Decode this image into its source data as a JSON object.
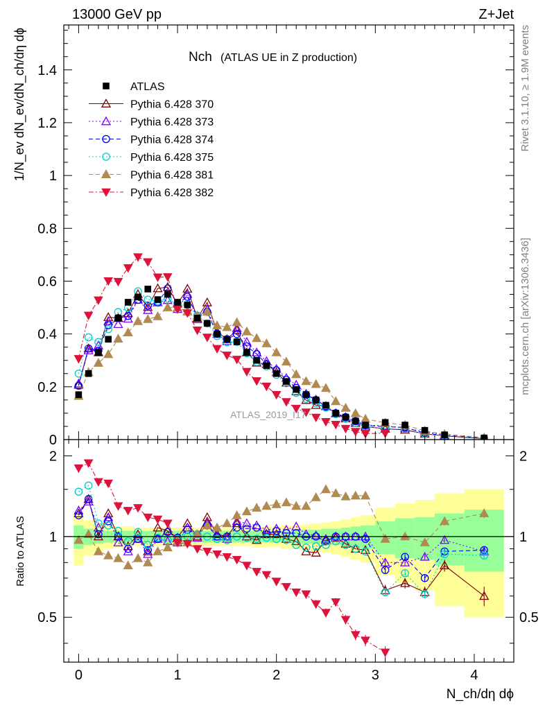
{
  "header": {
    "left": "13000 GeV pp",
    "right": "Z+Jet"
  },
  "side_labels": {
    "rivet": "Rivet 3.1.10, ≥ 1.9M events",
    "mcplots": "mcplots.cern.ch [arXiv:1306.3436]"
  },
  "chart_data": {
    "type": "scatter",
    "title": "Nch",
    "subtitle": "(ATLAS UE in Z production)",
    "watermark": "ATLAS_2019_I17",
    "main_ylabel": "1/N_ev dN_ev/dN_ch/dη dϕ",
    "ratio_ylabel": "Ratio to ATLAS",
    "xlabel": "N_ch/dη dϕ",
    "xlim": [
      -0.15,
      4.4
    ],
    "ylim_main": [
      0,
      1.57
    ],
    "ylim_ratio": [
      0.34,
      2.3
    ],
    "ratio_log_scale": true,
    "x_ticks": [
      0,
      1,
      2,
      3,
      4
    ],
    "main_y_ticks": [
      "0",
      "0.2",
      "0.4",
      "0.6",
      "0.8",
      "1",
      "1.2",
      "1.4"
    ],
    "ratio_y_ticks": [
      "0.5",
      "1",
      "2"
    ],
    "legend_placement": "top-left",
    "x": [
      0.0,
      0.1,
      0.2,
      0.3,
      0.4,
      0.5,
      0.6,
      0.7,
      0.8,
      0.9,
      1.0,
      1.1,
      1.2,
      1.3,
      1.4,
      1.5,
      1.6,
      1.7,
      1.8,
      1.9,
      2.0,
      2.1,
      2.2,
      2.3,
      2.4,
      2.5,
      2.6,
      2.7,
      2.8,
      2.9,
      3.1,
      3.3,
      3.5,
      3.7,
      4.1
    ],
    "data": {
      "name": "ATLAS",
      "color": "#000000",
      "values": [
        0.17,
        0.25,
        0.33,
        0.38,
        0.46,
        0.52,
        0.54,
        0.57,
        0.53,
        0.55,
        0.52,
        0.51,
        0.46,
        0.44,
        0.4,
        0.38,
        0.37,
        0.33,
        0.3,
        0.28,
        0.25,
        0.22,
        0.19,
        0.17,
        0.15,
        0.13,
        0.1,
        0.085,
        0.07,
        0.055,
        0.065,
        0.055,
        0.035,
        0.018,
        0.006
      ],
      "band_inner": [
        0.1,
        0.07,
        0.06,
        0.05,
        0.05,
        0.05,
        0.05,
        0.05,
        0.05,
        0.05,
        0.05,
        0.05,
        0.05,
        0.05,
        0.05,
        0.05,
        0.05,
        0.05,
        0.05,
        0.05,
        0.05,
        0.05,
        0.06,
        0.06,
        0.06,
        0.07,
        0.07,
        0.08,
        0.09,
        0.1,
        0.14,
        0.17,
        0.18,
        0.22,
        0.26
      ],
      "band_outer": [
        0.22,
        0.15,
        0.12,
        0.1,
        0.09,
        0.09,
        0.08,
        0.08,
        0.08,
        0.08,
        0.08,
        0.08,
        0.08,
        0.08,
        0.08,
        0.08,
        0.08,
        0.08,
        0.09,
        0.09,
        0.09,
        0.1,
        0.1,
        0.11,
        0.12,
        0.13,
        0.14,
        0.16,
        0.18,
        0.2,
        0.28,
        0.33,
        0.37,
        0.45,
        0.5
      ]
    },
    "series": [
      {
        "name": "Pythia 6.428 370",
        "color": "#7f0000",
        "marker": "triangle-open",
        "line": "solid",
        "ratio": [
          1.22,
          1.38,
          1.0,
          1.22,
          1.0,
          0.92,
          1.02,
          0.88,
          1.08,
          1.05,
          0.99,
          1.12,
          1.0,
          1.18,
          1.02,
          1.0,
          1.12,
          1.0,
          0.97,
          1.02,
          1.02,
          0.98,
          0.96,
          0.88,
          0.87,
          0.97,
          0.99,
          0.94,
          0.9,
          0.89,
          0.63,
          0.67,
          0.62,
          0.78,
          0.6
        ],
        "ratio_err": [
          0,
          0,
          0,
          0,
          0,
          0,
          0,
          0,
          0,
          0,
          0,
          0,
          0,
          0,
          0,
          0,
          0,
          0,
          0,
          0,
          0,
          0,
          0,
          0,
          0,
          0,
          0,
          0,
          0,
          0.02,
          0.03,
          0.03,
          0.03,
          0.04,
          0.05
        ]
      },
      {
        "name": "Pythia 6.428 373",
        "color": "#7f00ff",
        "marker": "triangle-open",
        "line": "dotted",
        "ratio": [
          1.25,
          1.35,
          1.08,
          1.18,
          0.95,
          0.88,
          0.98,
          0.86,
          0.98,
          0.96,
          0.95,
          1.08,
          0.99,
          1.12,
          1.0,
          0.98,
          1.14,
          1.12,
          1.1,
          1.06,
          1.07,
          1.06,
          1.09,
          1.02,
          1.01,
          0.98,
          1.0,
          1.0,
          1.0,
          1.0,
          0.8,
          0.8,
          0.84,
          0.97,
          0.88
        ],
        "ratio_err": [
          0,
          0,
          0,
          0,
          0,
          0,
          0,
          0,
          0,
          0,
          0,
          0,
          0,
          0,
          0,
          0,
          0,
          0,
          0,
          0,
          0,
          0,
          0,
          0,
          0,
          0,
          0,
          0,
          0,
          0.02,
          0.02,
          0.02,
          0.02,
          0.02,
          0.02
        ]
      },
      {
        "name": "Pythia 6.428 374",
        "color": "#0000ff",
        "marker": "circle-open",
        "line": "dashed",
        "ratio": [
          1.2,
          1.38,
          1.02,
          1.14,
          1.0,
          0.9,
          0.98,
          0.89,
          0.98,
          1.04,
          0.99,
          1.06,
          1.02,
          1.1,
          1.0,
          1.0,
          1.08,
          1.07,
          1.08,
          1.02,
          1.05,
          1.03,
          1.03,
          1.0,
          1.0,
          0.96,
          1.0,
          1.0,
          1.0,
          0.98,
          0.75,
          0.84,
          0.7,
          0.88,
          0.89
        ],
        "ratio_err": [
          0,
          0,
          0,
          0,
          0,
          0,
          0,
          0,
          0,
          0,
          0,
          0,
          0,
          0,
          0,
          0,
          0,
          0,
          0,
          0,
          0,
          0,
          0,
          0,
          0,
          0,
          0,
          0,
          0,
          0.02,
          0.02,
          0.02,
          0.02,
          0.02,
          0.02
        ]
      },
      {
        "name": "Pythia 6.428 375",
        "color": "#00cdcd",
        "marker": "circle-open",
        "line": "dotted",
        "ratio": [
          1.47,
          1.55,
          1.12,
          1.1,
          1.05,
          0.96,
          1.04,
          0.93,
          0.99,
          0.97,
          0.98,
          1.0,
          1.02,
          1.0,
          0.98,
          0.97,
          1.0,
          0.99,
          0.98,
          0.99,
          0.98,
          0.97,
          0.93,
          0.91,
          0.92,
          0.93,
          0.96,
          0.93,
          0.9,
          0.88,
          0.62,
          0.73,
          0.61,
          0.86,
          0.85
        ],
        "ratio_err": [
          0,
          0,
          0,
          0,
          0,
          0,
          0,
          0,
          0,
          0,
          0,
          0,
          0,
          0,
          0,
          0,
          0,
          0,
          0,
          0,
          0,
          0,
          0,
          0,
          0,
          0,
          0,
          0,
          0,
          0.02,
          0.02,
          0.02,
          0.02,
          0.02,
          0.02
        ]
      },
      {
        "name": "Pythia 6.428 381",
        "color": "#b08a50",
        "marker": "triangle-filled",
        "line": "dashed",
        "ratio": [
          0.97,
          1.02,
          0.88,
          0.85,
          0.83,
          0.78,
          0.83,
          0.8,
          0.88,
          0.91,
          0.96,
          0.95,
          1.02,
          1.1,
          1.08,
          1.12,
          1.2,
          1.24,
          1.28,
          1.3,
          1.32,
          1.34,
          1.3,
          1.3,
          1.4,
          1.5,
          1.45,
          1.41,
          1.42,
          1.42,
          0.98,
          1.0,
          0.95,
          1.14,
          1.22
        ],
        "ratio_err": [
          0,
          0,
          0,
          0,
          0,
          0,
          0,
          0,
          0,
          0,
          0,
          0,
          0,
          0,
          0,
          0,
          0,
          0,
          0,
          0,
          0,
          0,
          0,
          0,
          0,
          0,
          0,
          0,
          0,
          0.03,
          0.03,
          0.03,
          0.03,
          0.04,
          0.05
        ]
      },
      {
        "name": "Pythia 6.428 382",
        "color": "#dc143c",
        "marker": "triangle-down-filled",
        "line": "dashdot",
        "ratio": [
          1.8,
          1.88,
          1.6,
          1.58,
          1.3,
          1.25,
          1.28,
          1.18,
          1.16,
          1.12,
          0.95,
          0.94,
          0.9,
          0.88,
          0.86,
          0.84,
          0.82,
          0.78,
          0.74,
          0.72,
          0.68,
          0.65,
          0.62,
          0.61,
          0.56,
          0.52,
          0.57,
          0.49,
          0.43,
          0.41,
          0.37
        ],
        "ratio_err": [
          0,
          0,
          0,
          0,
          0,
          0,
          0,
          0,
          0,
          0,
          0,
          0,
          0,
          0,
          0,
          0,
          0,
          0,
          0,
          0,
          0,
          0,
          0.02,
          0.02,
          0.02,
          0.02,
          0.02,
          0.02,
          0.02,
          0.02,
          0.02
        ]
      }
    ]
  }
}
